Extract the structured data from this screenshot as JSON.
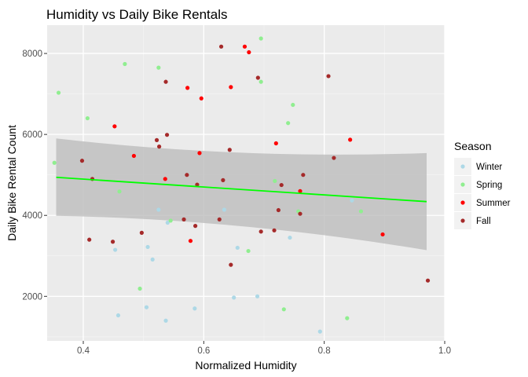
{
  "chart_data": {
    "type": "scatter",
    "title": "Humidity vs Daily Bike Rentals",
    "xlabel": "Normalized Humidity",
    "ylabel": "Daily Bike Rental Count",
    "xlim": [
      0.34,
      1.0
    ],
    "ylim": [
      900,
      8700
    ],
    "xticks": [
      0.4,
      0.6,
      0.8,
      1.0
    ],
    "xtick_labels": [
      "0.4",
      "0.6",
      "0.8",
      "1.0"
    ],
    "yticks": [
      2000,
      4000,
      6000,
      8000
    ],
    "ytick_labels": [
      "2000",
      "4000",
      "6000",
      "8000"
    ],
    "grid": true,
    "legend": {
      "title": "Season",
      "position": "right"
    },
    "series": [
      {
        "name": "Winter",
        "color": "#add8e6",
        "points": [
          [
            0.453,
            3150
          ],
          [
            0.458,
            1530
          ],
          [
            0.505,
            1730
          ],
          [
            0.507,
            3220
          ],
          [
            0.515,
            2910
          ],
          [
            0.525,
            4140
          ],
          [
            0.537,
            1400
          ],
          [
            0.54,
            3820
          ],
          [
            0.585,
            1700
          ],
          [
            0.634,
            4140
          ],
          [
            0.65,
            1970
          ],
          [
            0.656,
            3200
          ],
          [
            0.689,
            2000
          ],
          [
            0.743,
            3450
          ],
          [
            0.793,
            1130
          ],
          [
            0.846,
            4370
          ]
        ]
      },
      {
        "name": "Spring",
        "color": "#90ee90",
        "points": [
          [
            0.352,
            5300
          ],
          [
            0.359,
            7030
          ],
          [
            0.407,
            6400
          ],
          [
            0.46,
            4590
          ],
          [
            0.469,
            7740
          ],
          [
            0.494,
            2190
          ],
          [
            0.525,
            7650
          ],
          [
            0.545,
            3870
          ],
          [
            0.674,
            3120
          ],
          [
            0.695,
            8370
          ],
          [
            0.695,
            7300
          ],
          [
            0.718,
            4850
          ],
          [
            0.733,
            1680
          ],
          [
            0.74,
            6280
          ],
          [
            0.748,
            6730
          ],
          [
            0.757,
            4100
          ],
          [
            0.838,
            1460
          ],
          [
            0.861,
            4100
          ]
        ]
      },
      {
        "name": "Summer",
        "color": "#ff0000",
        "points": [
          [
            0.452,
            6200
          ],
          [
            0.484,
            5470
          ],
          [
            0.536,
            4900
          ],
          [
            0.573,
            7150
          ],
          [
            0.578,
            3370
          ],
          [
            0.593,
            5540
          ],
          [
            0.596,
            6890
          ],
          [
            0.645,
            7170
          ],
          [
            0.668,
            8170
          ],
          [
            0.675,
            8030
          ],
          [
            0.72,
            5780
          ],
          [
            0.76,
            4600
          ],
          [
            0.843,
            5870
          ],
          [
            0.897,
            3530
          ]
        ]
      },
      {
        "name": "Fall",
        "color": "#a52a2a",
        "points": [
          [
            0.398,
            5350
          ],
          [
            0.41,
            3400
          ],
          [
            0.415,
            4900
          ],
          [
            0.449,
            3350
          ],
          [
            0.497,
            3570
          ],
          [
            0.522,
            5860
          ],
          [
            0.526,
            5700
          ],
          [
            0.537,
            7300
          ],
          [
            0.539,
            5990
          ],
          [
            0.567,
            3900
          ],
          [
            0.572,
            5000
          ],
          [
            0.586,
            3740
          ],
          [
            0.589,
            4760
          ],
          [
            0.626,
            3900
          ],
          [
            0.629,
            8170
          ],
          [
            0.632,
            4870
          ],
          [
            0.643,
            5620
          ],
          [
            0.645,
            2780
          ],
          [
            0.69,
            7400
          ],
          [
            0.695,
            3600
          ],
          [
            0.717,
            3630
          ],
          [
            0.724,
            4130
          ],
          [
            0.729,
            4750
          ],
          [
            0.76,
            4040
          ],
          [
            0.765,
            5000
          ],
          [
            0.807,
            7440
          ],
          [
            0.816,
            5420
          ],
          [
            0.972,
            2390
          ]
        ]
      }
    ],
    "trend": {
      "color": "#00ff00",
      "band_color": "#bdbdbd",
      "x": [
        0.355,
        0.97
      ],
      "y": [
        4940,
        4340
      ],
      "band_upper": [
        5900,
        5540
      ],
      "band_lower": [
        3990,
        3140
      ]
    }
  }
}
